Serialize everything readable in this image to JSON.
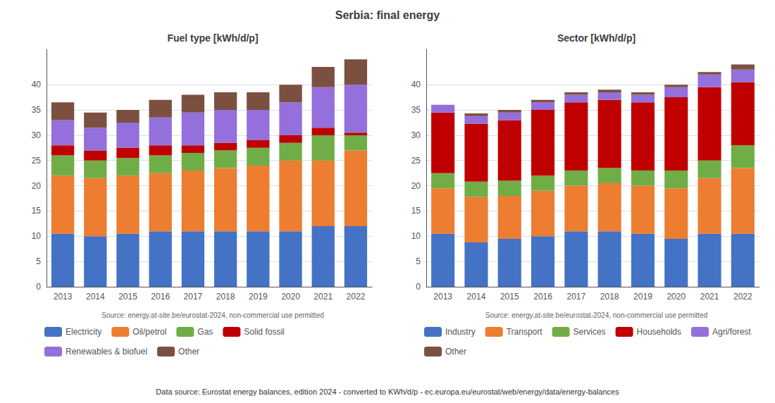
{
  "title": "Serbia: final energy",
  "annotations": [
    "Data source: Eurostat energy balances, edition 2024 - converted to KWh/d/p - ec.europa.eu/eurostat/web/energy/data/energy-balances"
  ],
  "chart_data": [
    {
      "type": "bar",
      "stacked": true,
      "title": "Fuel type [kWh/d/p]",
      "categories": [
        "2013",
        "2014",
        "2015",
        "2016",
        "2017",
        "2018",
        "2019",
        "2020",
        "2021",
        "2022"
      ],
      "series": [
        {
          "name": "Electricity",
          "color": "#4472c4",
          "values": [
            10.5,
            10.0,
            10.5,
            11.0,
            11.0,
            11.0,
            11.0,
            11.0,
            12.0,
            12.0
          ]
        },
        {
          "name": "Oil/petrol",
          "color": "#ed7d31",
          "values": [
            11.5,
            11.5,
            11.5,
            11.5,
            12.0,
            12.5,
            13.0,
            14.0,
            13.0,
            15.0
          ]
        },
        {
          "name": "Gas",
          "color": "#70ad47",
          "values": [
            4.0,
            3.5,
            3.5,
            3.5,
            3.5,
            3.5,
            3.5,
            3.5,
            5.0,
            3.0
          ]
        },
        {
          "name": "Solid fossil",
          "color": "#c00000",
          "values": [
            2.0,
            2.0,
            2.0,
            2.0,
            1.5,
            1.5,
            1.5,
            1.5,
            1.5,
            0.5
          ]
        },
        {
          "name": "Renewables & biofuel",
          "color": "#9370db",
          "values": [
            5.0,
            4.5,
            5.0,
            5.5,
            6.5,
            6.5,
            6.0,
            6.5,
            8.0,
            9.5
          ]
        },
        {
          "name": "Other",
          "color": "#7b5040",
          "values": [
            3.5,
            3.0,
            2.5,
            3.5,
            3.5,
            3.5,
            3.5,
            3.5,
            4.0,
            5.0
          ]
        }
      ],
      "ylim": [
        0,
        47
      ],
      "yticks": [
        0,
        5,
        10,
        15,
        20,
        25,
        30,
        35,
        40
      ],
      "grid": true,
      "legend": "bottom",
      "annotations": [
        "Source: energy.at-site.be/eurostat-2024, non-commercial use permitted"
      ]
    },
    {
      "type": "bar",
      "stacked": true,
      "title": "Sector [kWh/d/p]",
      "categories": [
        "2013",
        "2014",
        "2015",
        "2016",
        "2017",
        "2018",
        "2019",
        "2020",
        "2021",
        "2022"
      ],
      "series": [
        {
          "name": "Industry",
          "color": "#4472c4",
          "values": [
            10.5,
            8.8,
            9.5,
            10.0,
            11.0,
            11.0,
            10.5,
            9.5,
            10.5,
            10.5
          ]
        },
        {
          "name": "Transport",
          "color": "#ed7d31",
          "values": [
            9.0,
            9.0,
            8.5,
            9.0,
            9.0,
            9.5,
            9.5,
            10.0,
            11.0,
            13.0
          ]
        },
        {
          "name": "Services",
          "color": "#70ad47",
          "values": [
            3.0,
            3.0,
            3.0,
            3.0,
            3.0,
            3.0,
            3.0,
            3.5,
            3.5,
            4.5
          ]
        },
        {
          "name": "Households",
          "color": "#c00000",
          "values": [
            12.0,
            11.5,
            12.0,
            13.0,
            13.5,
            13.5,
            13.5,
            14.5,
            14.5,
            12.5
          ]
        },
        {
          "name": "Agri/forest",
          "color": "#9370db",
          "values": [
            1.5,
            1.5,
            1.5,
            1.5,
            1.5,
            1.5,
            1.5,
            2.0,
            2.5,
            2.5
          ]
        },
        {
          "name": "Other",
          "color": "#7b5040",
          "values": [
            0.0,
            0.5,
            0.5,
            0.5,
            0.5,
            0.5,
            0.5,
            0.5,
            0.5,
            1.0
          ]
        }
      ],
      "ylim": [
        0,
        47
      ],
      "yticks": [
        0,
        5,
        10,
        15,
        20,
        25,
        30,
        35,
        40
      ],
      "grid": true,
      "legend": "bottom",
      "annotations": [
        "Source: energy.at-site.be/eurostat-2024, non-commercial use permitted"
      ]
    }
  ]
}
